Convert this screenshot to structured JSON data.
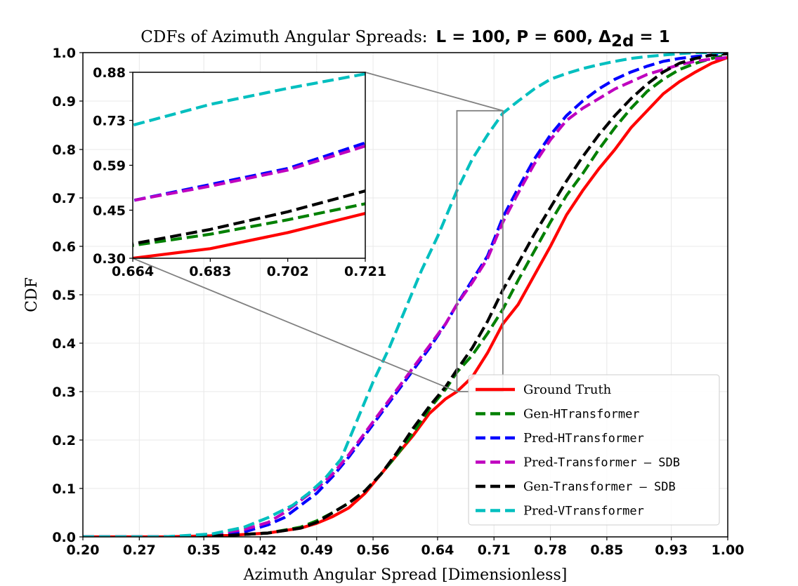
{
  "chart_data": {
    "type": "line",
    "title": {
      "prefix": "CDFs of Azimuth Angular Spreads:",
      "params": "L = 100, P = 600, Δ",
      "subscript": "2d",
      "suffix": " = 1"
    },
    "xlabel": "Azimuth Angular Spread [Dimensionless]",
    "ylabel": "CDF",
    "xlim": [
      0.2,
      1.0
    ],
    "ylim": [
      0.0,
      1.0
    ],
    "xticks": [
      0.2,
      0.27,
      0.35,
      0.42,
      0.49,
      0.56,
      0.64,
      0.71,
      0.78,
      0.85,
      0.93,
      1.0
    ],
    "xtick_labels": [
      "0.20",
      "0.27",
      "0.35",
      "0.42",
      "0.49",
      "0.56",
      "0.64",
      "0.71",
      "0.78",
      "0.85",
      "0.93",
      "1.00"
    ],
    "yticks": [
      0.0,
      0.1,
      0.2,
      0.3,
      0.4,
      0.5,
      0.6,
      0.7,
      0.8,
      0.9,
      1.0
    ],
    "ytick_labels": [
      "0.0",
      "0.1",
      "0.2",
      "0.3",
      "0.4",
      "0.5",
      "0.6",
      "0.7",
      "0.8",
      "0.9",
      "1.0"
    ],
    "grid": true,
    "legend_position": "bottom-right",
    "series": [
      {
        "name": "Ground Truth",
        "legend_prefix": "Ground Truth",
        "legend_mono": "",
        "legend_suffix": "",
        "color": "#ff0000",
        "dash": "solid",
        "points": [
          [
            0.2,
            0.0
          ],
          [
            0.3,
            0.0
          ],
          [
            0.38,
            0.003
          ],
          [
            0.43,
            0.008
          ],
          [
            0.47,
            0.018
          ],
          [
            0.49,
            0.028
          ],
          [
            0.51,
            0.042
          ],
          [
            0.53,
            0.06
          ],
          [
            0.55,
            0.09
          ],
          [
            0.57,
            0.13
          ],
          [
            0.59,
            0.17
          ],
          [
            0.61,
            0.21
          ],
          [
            0.63,
            0.255
          ],
          [
            0.65,
            0.285
          ],
          [
            0.664,
            0.3
          ],
          [
            0.683,
            0.33
          ],
          [
            0.702,
            0.38
          ],
          [
            0.721,
            0.44
          ],
          [
            0.74,
            0.48
          ],
          [
            0.76,
            0.54
          ],
          [
            0.78,
            0.6
          ],
          [
            0.8,
            0.665
          ],
          [
            0.82,
            0.715
          ],
          [
            0.84,
            0.76
          ],
          [
            0.86,
            0.8
          ],
          [
            0.88,
            0.845
          ],
          [
            0.9,
            0.88
          ],
          [
            0.92,
            0.915
          ],
          [
            0.94,
            0.94
          ],
          [
            0.96,
            0.96
          ],
          [
            0.98,
            0.978
          ],
          [
            1.0,
            0.99
          ]
        ]
      },
      {
        "name": "Gen-HTransformer",
        "legend_prefix": "Gen-",
        "legend_mono": "HTransformer",
        "legend_suffix": "",
        "color": "#008000",
        "dash": "dashed",
        "points": [
          [
            0.2,
            0.0
          ],
          [
            0.3,
            0.0
          ],
          [
            0.38,
            0.003
          ],
          [
            0.43,
            0.008
          ],
          [
            0.47,
            0.02
          ],
          [
            0.49,
            0.033
          ],
          [
            0.51,
            0.05
          ],
          [
            0.53,
            0.07
          ],
          [
            0.55,
            0.095
          ],
          [
            0.57,
            0.13
          ],
          [
            0.59,
            0.17
          ],
          [
            0.61,
            0.215
          ],
          [
            0.63,
            0.265
          ],
          [
            0.65,
            0.305
          ],
          [
            0.664,
            0.34
          ],
          [
            0.683,
            0.375
          ],
          [
            0.702,
            0.42
          ],
          [
            0.721,
            0.47
          ],
          [
            0.74,
            0.53
          ],
          [
            0.76,
            0.59
          ],
          [
            0.78,
            0.65
          ],
          [
            0.8,
            0.705
          ],
          [
            0.82,
            0.75
          ],
          [
            0.84,
            0.8
          ],
          [
            0.86,
            0.845
          ],
          [
            0.88,
            0.885
          ],
          [
            0.9,
            0.92
          ],
          [
            0.92,
            0.945
          ],
          [
            0.94,
            0.965
          ],
          [
            0.96,
            0.978
          ],
          [
            0.98,
            0.988
          ],
          [
            1.0,
            0.995
          ]
        ]
      },
      {
        "name": "Pred-HTransformer",
        "legend_prefix": "Pred-",
        "legend_mono": "HTransformer",
        "legend_suffix": "",
        "color": "#0000ff",
        "dash": "dashed",
        "points": [
          [
            0.2,
            0.0
          ],
          [
            0.3,
            0.0
          ],
          [
            0.36,
            0.004
          ],
          [
            0.4,
            0.01
          ],
          [
            0.43,
            0.025
          ],
          [
            0.45,
            0.04
          ],
          [
            0.47,
            0.065
          ],
          [
            0.49,
            0.09
          ],
          [
            0.51,
            0.125
          ],
          [
            0.53,
            0.165
          ],
          [
            0.55,
            0.21
          ],
          [
            0.57,
            0.255
          ],
          [
            0.59,
            0.3
          ],
          [
            0.61,
            0.345
          ],
          [
            0.63,
            0.39
          ],
          [
            0.65,
            0.44
          ],
          [
            0.664,
            0.48
          ],
          [
            0.683,
            0.53
          ],
          [
            0.702,
            0.58
          ],
          [
            0.721,
            0.66
          ],
          [
            0.74,
            0.72
          ],
          [
            0.76,
            0.78
          ],
          [
            0.78,
            0.83
          ],
          [
            0.8,
            0.87
          ],
          [
            0.82,
            0.9
          ],
          [
            0.84,
            0.925
          ],
          [
            0.86,
            0.945
          ],
          [
            0.88,
            0.96
          ],
          [
            0.9,
            0.972
          ],
          [
            0.92,
            0.982
          ],
          [
            0.94,
            0.988
          ],
          [
            0.96,
            0.992
          ],
          [
            0.98,
            0.995
          ],
          [
            1.0,
            0.998
          ]
        ]
      },
      {
        "name": "Pred-Transformer — SDB",
        "legend_prefix": "Pred-",
        "legend_mono": "Transformer",
        "legend_suffix": " — SDB",
        "color": "#bf00bf",
        "dash": "dashed",
        "points": [
          [
            0.2,
            0.0
          ],
          [
            0.3,
            0.0
          ],
          [
            0.36,
            0.005
          ],
          [
            0.4,
            0.015
          ],
          [
            0.43,
            0.03
          ],
          [
            0.45,
            0.05
          ],
          [
            0.47,
            0.075
          ],
          [
            0.49,
            0.1
          ],
          [
            0.51,
            0.13
          ],
          [
            0.53,
            0.17
          ],
          [
            0.55,
            0.215
          ],
          [
            0.57,
            0.26
          ],
          [
            0.59,
            0.305
          ],
          [
            0.61,
            0.35
          ],
          [
            0.63,
            0.395
          ],
          [
            0.65,
            0.44
          ],
          [
            0.664,
            0.48
          ],
          [
            0.683,
            0.525
          ],
          [
            0.702,
            0.575
          ],
          [
            0.721,
            0.65
          ],
          [
            0.74,
            0.71
          ],
          [
            0.76,
            0.77
          ],
          [
            0.78,
            0.82
          ],
          [
            0.8,
            0.86
          ],
          [
            0.82,
            0.885
          ],
          [
            0.84,
            0.905
          ],
          [
            0.86,
            0.925
          ],
          [
            0.88,
            0.94
          ],
          [
            0.9,
            0.955
          ],
          [
            0.92,
            0.965
          ],
          [
            0.94,
            0.975
          ],
          [
            0.96,
            0.982
          ],
          [
            0.98,
            0.987
          ],
          [
            1.0,
            0.99
          ]
        ]
      },
      {
        "name": "Gen-Transformer — SDB",
        "legend_prefix": "Gen-",
        "legend_mono": "Transformer",
        "legend_suffix": " — SDB",
        "color": "#000000",
        "dash": "dashed",
        "points": [
          [
            0.2,
            0.0
          ],
          [
            0.3,
            0.0
          ],
          [
            0.38,
            0.003
          ],
          [
            0.43,
            0.008
          ],
          [
            0.47,
            0.018
          ],
          [
            0.49,
            0.03
          ],
          [
            0.51,
            0.05
          ],
          [
            0.53,
            0.07
          ],
          [
            0.55,
            0.095
          ],
          [
            0.57,
            0.13
          ],
          [
            0.59,
            0.175
          ],
          [
            0.61,
            0.225
          ],
          [
            0.63,
            0.27
          ],
          [
            0.65,
            0.31
          ],
          [
            0.664,
            0.345
          ],
          [
            0.683,
            0.39
          ],
          [
            0.702,
            0.445
          ],
          [
            0.721,
            0.51
          ],
          [
            0.74,
            0.565
          ],
          [
            0.76,
            0.625
          ],
          [
            0.78,
            0.68
          ],
          [
            0.8,
            0.735
          ],
          [
            0.82,
            0.785
          ],
          [
            0.84,
            0.83
          ],
          [
            0.86,
            0.87
          ],
          [
            0.88,
            0.905
          ],
          [
            0.9,
            0.935
          ],
          [
            0.92,
            0.96
          ],
          [
            0.94,
            0.978
          ],
          [
            0.96,
            0.988
          ],
          [
            0.98,
            0.995
          ],
          [
            1.0,
            0.998
          ]
        ]
      },
      {
        "name": "Pred-VTransformer",
        "legend_prefix": "Pred-",
        "legend_mono": "VTransformer",
        "legend_suffix": "",
        "color": "#00bfbf",
        "dash": "dashed",
        "points": [
          [
            0.2,
            0.0
          ],
          [
            0.3,
            0.0
          ],
          [
            0.36,
            0.006
          ],
          [
            0.4,
            0.02
          ],
          [
            0.43,
            0.04
          ],
          [
            0.46,
            0.065
          ],
          [
            0.48,
            0.09
          ],
          [
            0.5,
            0.12
          ],
          [
            0.52,
            0.16
          ],
          [
            0.54,
            0.24
          ],
          [
            0.56,
            0.32
          ],
          [
            0.58,
            0.39
          ],
          [
            0.6,
            0.47
          ],
          [
            0.62,
            0.55
          ],
          [
            0.64,
            0.62
          ],
          [
            0.664,
            0.715
          ],
          [
            0.683,
            0.78
          ],
          [
            0.702,
            0.83
          ],
          [
            0.721,
            0.875
          ],
          [
            0.74,
            0.9
          ],
          [
            0.76,
            0.925
          ],
          [
            0.78,
            0.945
          ],
          [
            0.8,
            0.957
          ],
          [
            0.82,
            0.967
          ],
          [
            0.84,
            0.975
          ],
          [
            0.86,
            0.982
          ],
          [
            0.88,
            0.988
          ],
          [
            0.9,
            0.992
          ],
          [
            0.92,
            0.995
          ],
          [
            0.94,
            0.998
          ],
          [
            0.96,
            1.0
          ],
          [
            1.0,
            1.0
          ]
        ]
      }
    ],
    "inset": {
      "xlim": [
        0.664,
        0.721
      ],
      "ylim": [
        0.3,
        0.88
      ],
      "xticks": [
        0.664,
        0.683,
        0.702,
        0.721
      ],
      "xtick_labels": [
        "0.664",
        "0.683",
        "0.702",
        "0.721"
      ],
      "yticks": [
        0.3,
        0.45,
        0.59,
        0.73,
        0.88
      ],
      "ytick_labels": [
        "0.30",
        "0.45",
        "0.59",
        "0.73",
        "0.88"
      ]
    }
  }
}
